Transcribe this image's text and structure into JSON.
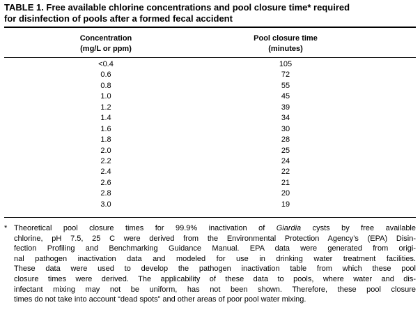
{
  "title": {
    "lines": [
      "TABLE 1. Free available chlorine concentrations and pool closure time* required",
      "for disinfection of pools after a formed fecal accident"
    ]
  },
  "table": {
    "header": [
      [
        "Concentration",
        "(mg/L or ppm)"
      ],
      [
        "Pool closure time",
        "(minutes)"
      ]
    ],
    "rows": [
      [
        "<0.4",
        "105"
      ],
      [
        "0.6",
        "72"
      ],
      [
        "0.8",
        "55"
      ],
      [
        "1.0",
        "45"
      ],
      [
        "1.2",
        "39"
      ],
      [
        "1.4",
        "34"
      ],
      [
        "1.6",
        "30"
      ],
      [
        "1.8",
        "28"
      ],
      [
        "2.0",
        "25"
      ],
      [
        "2.2",
        "24"
      ],
      [
        "2.4",
        "22"
      ],
      [
        "2.6",
        "21"
      ],
      [
        "2.8",
        "20"
      ],
      [
        "3.0",
        "19"
      ]
    ]
  },
  "footnote": {
    "marker": "*",
    "first_line": {
      "before": "Theoretical pool closure times for 99.9% inactivation of ",
      "italic": "Giardia",
      "after": " cysts by free available"
    },
    "lines": [
      "chlorine, pH 7.5, 25 C were derived from the Environmental Protection Agency’s (EPA) Disin-",
      "fection Profiling and Benchmarking Guidance Manual. EPA data were generated from origi-",
      "nal pathogen inactivation data and modeled for use in drinking water treatment facilities.",
      "These data were used to develop the pathogen inactivation table from which these pool",
      "closure times were derived. The applicability of these data to pools, where water and dis-",
      "infectant mixing may not be uniform, has not been shown. Therefore, these pool closure",
      "times do not take into account “dead spots” and other areas of poor pool water mixing."
    ]
  }
}
